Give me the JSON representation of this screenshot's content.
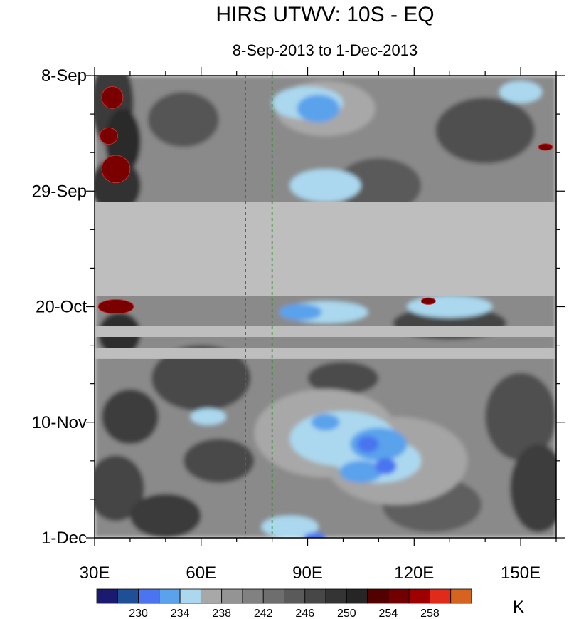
{
  "chart_data": {
    "type": "heatmap",
    "title": "HIRS UTWV: 10S - EQ",
    "subtitle": "8-Sep-2013 to 1-Dec-2013",
    "xlabel": "",
    "ylabel": "",
    "x_axis": {
      "min_lon": 30,
      "max_lon": 160,
      "ticks": [
        {
          "value": 30,
          "label": "30E"
        },
        {
          "value": 60,
          "label": "60E"
        },
        {
          "value": 90,
          "label": "90E"
        },
        {
          "value": 120,
          "label": "120E"
        },
        {
          "value": 150,
          "label": "150E"
        }
      ]
    },
    "y_axis": {
      "start": "2013-09-08",
      "end": "2013-12-01",
      "days_total": 84,
      "ticks": [
        {
          "day": 0,
          "label": "8-Sep"
        },
        {
          "day": 21,
          "label": "29-Sep"
        },
        {
          "day": 42,
          "label": "20-Oct"
        },
        {
          "day": 63,
          "label": "10-Nov"
        },
        {
          "day": 84,
          "label": "1-Dec"
        }
      ]
    },
    "reference_lines_lon": [
      72.5,
      80
    ],
    "missing_data_bands_days": [
      [
        23,
        40
      ],
      [
        45.5,
        47.5
      ],
      [
        49.5,
        51.5
      ]
    ],
    "colorbar": {
      "unit": "K",
      "levels": [
        228,
        230,
        232,
        234,
        236,
        238,
        240,
        242,
        244,
        246,
        248,
        250,
        252,
        254,
        256,
        258,
        260
      ],
      "labels": [
        "230",
        "234",
        "238",
        "242",
        "246",
        "250",
        "254",
        "258"
      ],
      "colors": [
        "#1a1a6e",
        "#1f4f96",
        "#4a74f0",
        "#5aa2ec",
        "#abd8ee",
        "#a8a8a8",
        "#949494",
        "#818181",
        "#6e6e6e",
        "#5a5a5a",
        "#474747",
        "#343434",
        "#262626",
        "#520000",
        "#730000",
        "#9e0000",
        "#e02a1a",
        "#d66420"
      ]
    },
    "missing_color": "#bebebe",
    "ref_line_color": "#1e8a1e"
  }
}
